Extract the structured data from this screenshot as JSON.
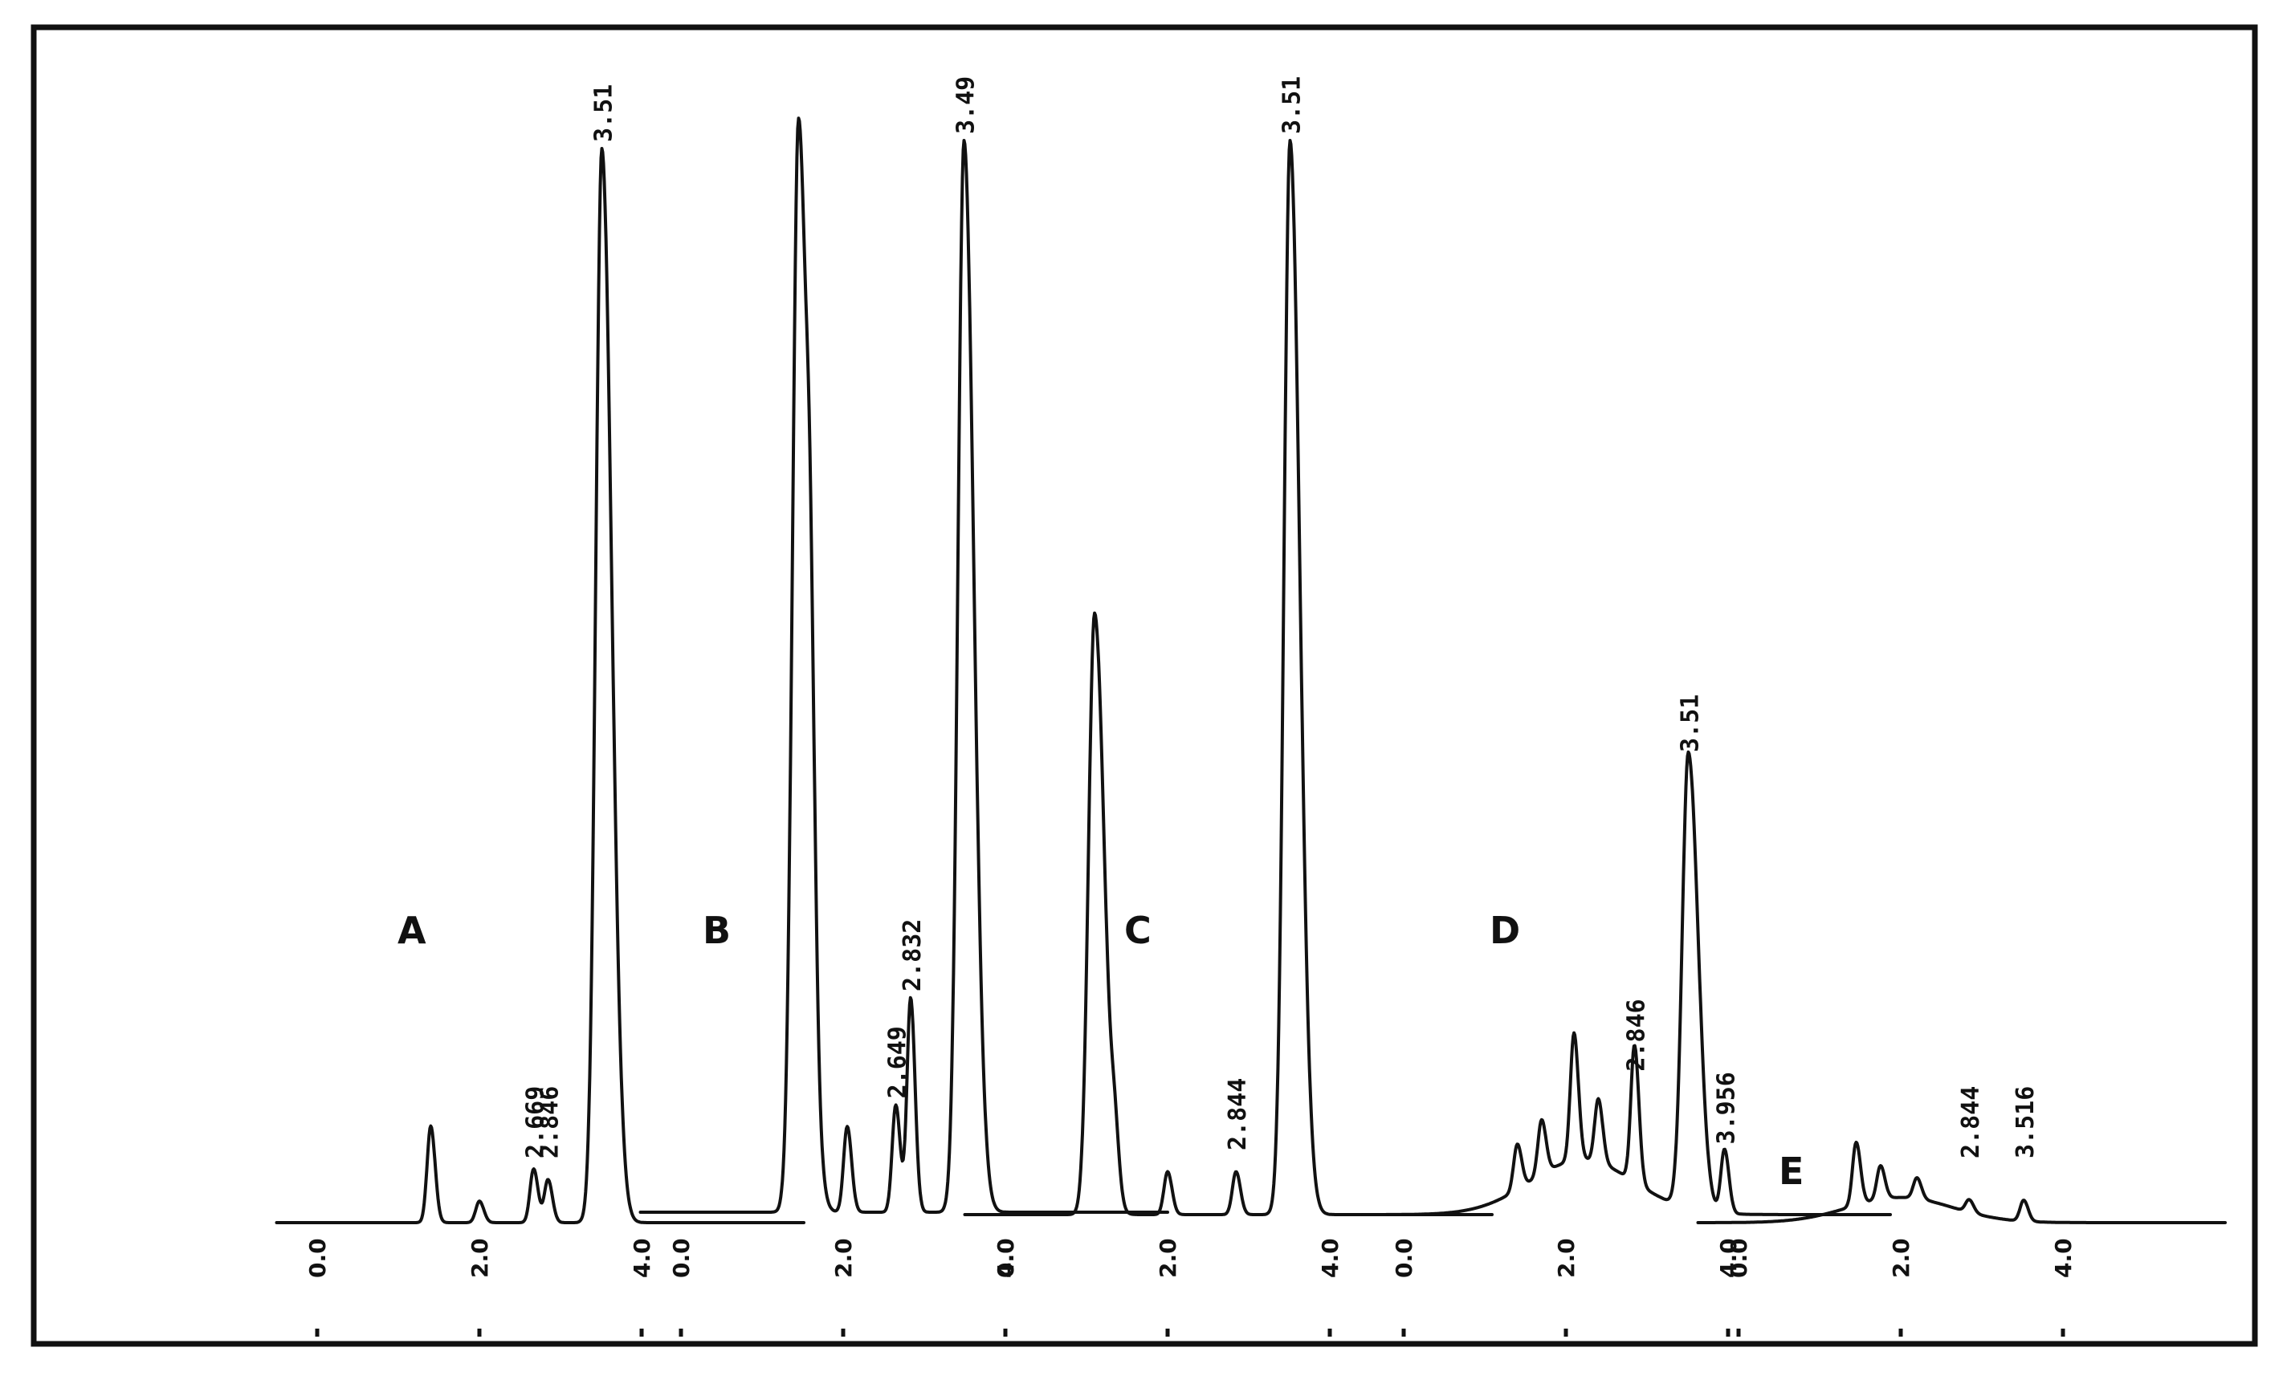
{
  "chart_data": [
    {
      "type": "line",
      "panel_label": "A",
      "xticks": [
        "0.0",
        "2.0",
        "4.0"
      ],
      "xlim": [
        0,
        5.8
      ],
      "peaks": [
        {
          "x": 1.4,
          "height": 0.09
        },
        {
          "x": 2.0,
          "height": 0.02
        },
        {
          "x": 2.669,
          "height": 0.05,
          "label": "2.669"
        },
        {
          "x": 2.846,
          "height": 0.04,
          "label": "2.846"
        },
        {
          "x": 3.51,
          "height": 1.0,
          "label": "3.51"
        }
      ]
    },
    {
      "type": "line",
      "panel_label": "B",
      "xticks": [
        "0.0",
        "2.0",
        "4.0"
      ],
      "xlim": [
        0,
        5.8
      ],
      "peaks": [
        {
          "x": 1.45,
          "height": 1.02
        },
        {
          "x": 1.6,
          "height": 0.2
        },
        {
          "x": 2.05,
          "height": 0.08
        },
        {
          "x": 2.649,
          "height": 0.1,
          "label": "2.649"
        },
        {
          "x": 2.832,
          "height": 0.2,
          "label": "2.832"
        },
        {
          "x": 3.49,
          "height": 1.0,
          "label": "3.49"
        }
      ]
    },
    {
      "type": "line",
      "panel_label": "C",
      "xticks": [
        "0.0",
        "2.0",
        "4.0"
      ],
      "xlim": [
        0,
        5.8
      ],
      "peaks": [
        {
          "x": 1.1,
          "height": 0.56
        },
        {
          "x": 1.35,
          "height": 0.05
        },
        {
          "x": 2.0,
          "height": 0.04
        },
        {
          "x": 2.844,
          "height": 0.04,
          "label": "2.844"
        },
        {
          "x": 3.51,
          "height": 1.0,
          "label": "3.51"
        }
      ]
    },
    {
      "type": "line",
      "panel_label": "D",
      "xticks": [
        "0.0",
        "2.0",
        "4.0"
      ],
      "xlim": [
        0,
        5.8
      ],
      "peaks": [
        {
          "x": 1.4,
          "height": 0.1
        },
        {
          "x": 1.7,
          "height": 0.12
        },
        {
          "x": 2.1,
          "height": 0.28
        },
        {
          "x": 2.4,
          "height": 0.14
        },
        {
          "x": 2.846,
          "height": 0.3,
          "label": "2.846"
        },
        {
          "x": 3.51,
          "height": 1.0,
          "label": "3.51"
        },
        {
          "x": 3.956,
          "height": 0.14,
          "label": "3.956"
        }
      ]
    },
    {
      "type": "line",
      "panel_label": "E",
      "xticks": [
        "0.0",
        "2.0",
        "4.0"
      ],
      "xlim": [
        0,
        5.8
      ],
      "peaks": [
        {
          "x": 1.45,
          "height": 0.15
        },
        {
          "x": 1.75,
          "height": 0.08
        },
        {
          "x": 2.2,
          "height": 0.05
        },
        {
          "x": 2.844,
          "height": 0.03,
          "label": "2.844"
        },
        {
          "x": 3.516,
          "height": 0.05,
          "label": "3.516"
        }
      ]
    }
  ]
}
